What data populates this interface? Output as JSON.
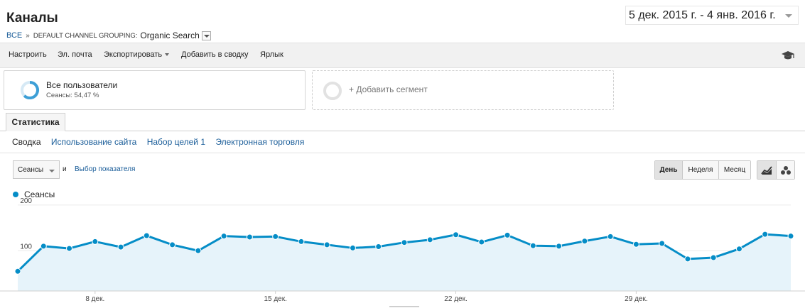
{
  "header": {
    "title": "Каналы",
    "date_range": "5 дек. 2015 г. - 4 янв. 2016 г."
  },
  "breadcrumb": {
    "all": "ВСЕ",
    "separator": "»",
    "group_label": "DEFAULT CHANNEL GROUPING:",
    "value": "Organic Search"
  },
  "toolbar": {
    "items": [
      "Настроить",
      "Эл. почта",
      "Экспортировать",
      "Добавить в сводку",
      "Ярлык"
    ]
  },
  "segments": {
    "active_name": "Все пользователи",
    "active_sub": "Сеансы: 54,47 %",
    "add_label": "+ Добавить сегмент"
  },
  "tabs": {
    "statistics": "Статистика",
    "subnav": [
      "Сводка",
      "Использование сайта",
      "Набор целей 1",
      "Электронная торговля"
    ]
  },
  "controls": {
    "metric": "Сеансы",
    "and": "и",
    "pick_metric": "Выбор показателя",
    "periods": [
      "День",
      "Неделя",
      "Месяц"
    ],
    "selected_period": "День"
  },
  "colors": {
    "series": "#058dc7",
    "fill": "#e6f3fa",
    "link": "#1a5d99"
  },
  "chart_data": {
    "type": "area",
    "legend": "Сеансы",
    "yticks": [
      200,
      100
    ],
    "ylim": [
      12,
      206
    ],
    "xtick_labels": [
      "8 дек.",
      "15 дек.",
      "22 дек.",
      "29 дек."
    ],
    "xtick_index": [
      3,
      10,
      17,
      24
    ],
    "series": [
      {
        "name": "Сеансы",
        "values": [
          55,
          110,
          105,
          120,
          108,
          133,
          113,
          100,
          132,
          130,
          131,
          120,
          113,
          106,
          109,
          118,
          124,
          135,
          119,
          134,
          111,
          110,
          121,
          131,
          114,
          116,
          82,
          85,
          104,
          136,
          132
        ]
      }
    ]
  }
}
